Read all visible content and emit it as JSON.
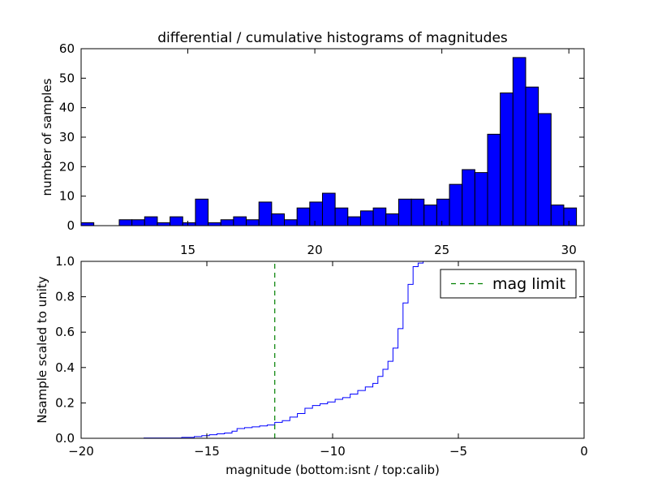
{
  "chart_data": [
    {
      "type": "bar",
      "title": "differential / cumulative histograms of magnitudes",
      "xlabel": "",
      "ylabel": "number of samples",
      "xlim": [
        10.8,
        30.6
      ],
      "ylim": [
        0,
        60
      ],
      "x_axis_position": "top",
      "xticks": [
        15,
        20,
        25,
        30
      ],
      "yticks": [
        0,
        10,
        20,
        30,
        40,
        50,
        60
      ],
      "grid": false,
      "bar_color": "#0000ff",
      "bin_edges": [
        10.8,
        11.3,
        11.8,
        12.3,
        12.8,
        13.3,
        13.8,
        14.3,
        14.8,
        15.3,
        15.8,
        16.3,
        16.8,
        17.3,
        17.8,
        18.3,
        18.8,
        19.3,
        19.8,
        20.3,
        20.8,
        21.3,
        21.8,
        22.3,
        22.8,
        23.3,
        23.8,
        24.3,
        24.8,
        25.3,
        25.8,
        26.3,
        26.8,
        27.3,
        27.8,
        28.3,
        28.8,
        29.3,
        29.8,
        30.3
      ],
      "values": [
        1,
        0,
        0,
        2,
        2,
        3,
        1,
        3,
        1,
        9,
        1,
        2,
        3,
        2,
        8,
        4,
        2,
        6,
        8,
        11,
        6,
        3,
        5,
        6,
        4,
        9,
        9,
        7,
        9,
        14,
        19,
        18,
        31,
        45,
        57,
        47,
        38,
        7,
        6
      ]
    },
    {
      "type": "line",
      "step": true,
      "title": "",
      "xlabel": "magnitude (bottom:isnt / top:calib)",
      "ylabel": "Nsample scaled to unity",
      "xlim": [
        -20,
        0
      ],
      "ylim": [
        0,
        1.0
      ],
      "xticks": [
        -20,
        -15,
        -10,
        -5,
        0
      ],
      "xtick_labels": [
        "−20",
        "−15",
        "−10",
        "−5",
        "0"
      ],
      "yticks": [
        0.0,
        0.2,
        0.4,
        0.6,
        0.8,
        1.0
      ],
      "ytick_labels": [
        "0.0",
        "0.2",
        "0.4",
        "0.6",
        "0.8",
        "1.0"
      ],
      "grid": false,
      "legend_position": "upper right",
      "series": [
        {
          "name": "",
          "color": "#0000ff",
          "x": [
            -20,
            -17.5,
            -16.0,
            -15.5,
            -15.2,
            -14.9,
            -14.6,
            -14.3,
            -14.0,
            -13.8,
            -13.5,
            -13.2,
            -12.9,
            -12.6,
            -12.3,
            -12.0,
            -11.7,
            -11.4,
            -11.1,
            -10.8,
            -10.5,
            -10.2,
            -9.9,
            -9.6,
            -9.3,
            -9.0,
            -8.7,
            -8.4,
            -8.2,
            -8.0,
            -7.8,
            -7.6,
            -7.4,
            -7.2,
            -7.0,
            -6.8,
            -6.6,
            -6.4,
            0
          ],
          "y": [
            0.0,
            0.002,
            0.005,
            0.01,
            0.015,
            0.02,
            0.025,
            0.03,
            0.04,
            0.055,
            0.06,
            0.065,
            0.07,
            0.075,
            0.09,
            0.1,
            0.12,
            0.14,
            0.17,
            0.185,
            0.195,
            0.205,
            0.22,
            0.23,
            0.25,
            0.27,
            0.29,
            0.31,
            0.35,
            0.39,
            0.435,
            0.51,
            0.62,
            0.765,
            0.87,
            0.97,
            0.99,
            1.0,
            1.0
          ]
        },
        {
          "name": "mag limit",
          "color": "#008000",
          "dashed": true,
          "x": [
            -12.3,
            -12.3
          ],
          "y": [
            0,
            1.0
          ]
        }
      ]
    }
  ]
}
